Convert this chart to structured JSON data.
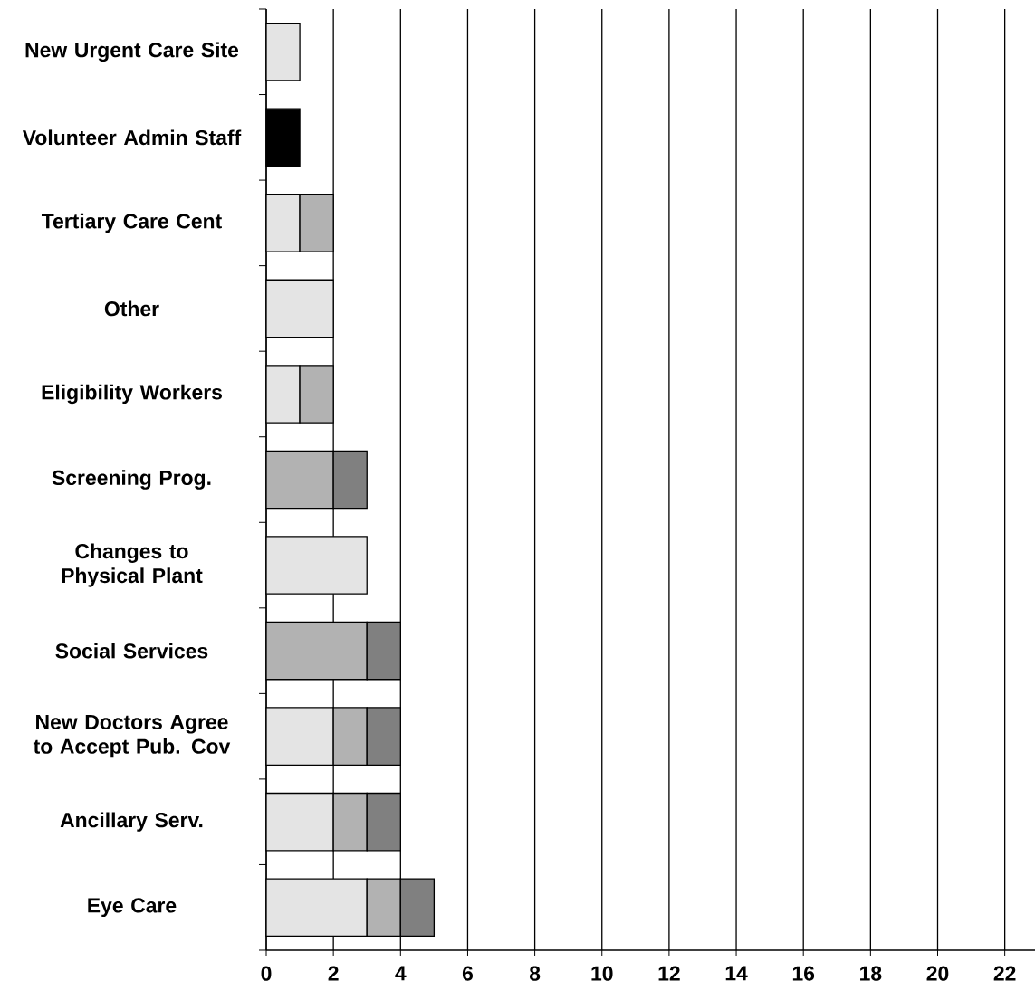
{
  "chart_data": {
    "type": "bar",
    "orientation": "horizontal",
    "stacked": true,
    "categories": [
      "New Urgent Care Site",
      "Volunteer Admin Staff",
      "Tertiary Care Cent",
      "Other",
      "Eligibility Workers",
      "Screening Prog.",
      "Changes to Physical Plant",
      "Social Services",
      "New Doctors Agree to Accept Pub. Cov",
      "Ancillary Serv.",
      "Eye Care"
    ],
    "series": [
      {
        "color": "#e4e4e4",
        "values": [
          1,
          null,
          1,
          2,
          1,
          null,
          3,
          null,
          2,
          2,
          3
        ]
      },
      {
        "color": "#b2b2b2",
        "values": [
          null,
          null,
          1,
          null,
          1,
          2,
          null,
          3,
          1,
          1,
          1
        ]
      },
      {
        "color": "#808080",
        "values": [
          null,
          null,
          null,
          null,
          null,
          1,
          null,
          1,
          1,
          1,
          1
        ]
      },
      {
        "color": "#000000",
        "values": [
          null,
          1,
          null,
          null,
          null,
          null,
          null,
          null,
          null,
          null,
          null
        ]
      }
    ],
    "xlim": [
      0,
      22.9
    ],
    "xticks": [
      0,
      2,
      4,
      6,
      8,
      10,
      12,
      14,
      16,
      18,
      20,
      22
    ],
    "grid": "x"
  }
}
